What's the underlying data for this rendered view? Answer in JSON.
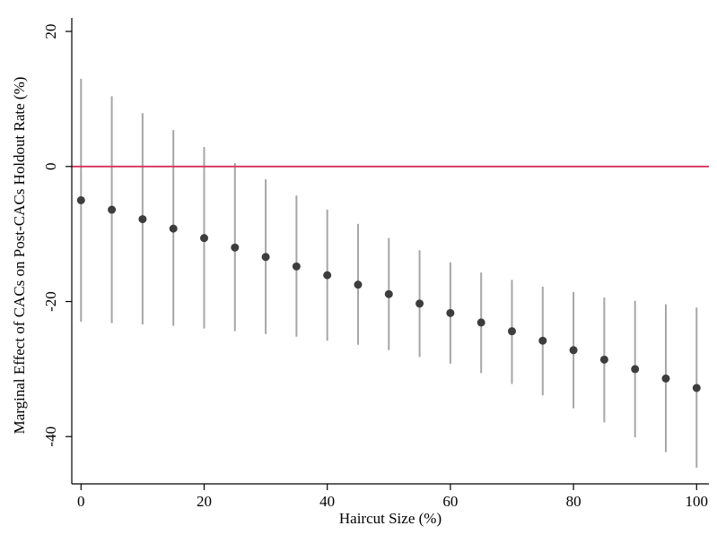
{
  "chart_data": {
    "type": "scatter",
    "title": "",
    "xlabel": "Haircut Size (%)",
    "ylabel": "Marginal Effect of CACs on Post-CACs Holdout Rate (%)",
    "xlim": [
      -1.5,
      102
    ],
    "ylim": [
      -47,
      22
    ],
    "xticks": [
      0,
      20,
      40,
      60,
      80,
      100
    ],
    "yticks": [
      20,
      0,
      -20,
      -40
    ],
    "xtick_labels": [
      "0",
      "20",
      "40",
      "60",
      "80",
      "100"
    ],
    "ytick_labels": [
      "20",
      "0",
      "-20",
      "-40"
    ],
    "reference_line": {
      "y": 0,
      "color": "#d6315b"
    },
    "colors": {
      "point": "#3d3d3d",
      "ci_bar": "#a6a6a6",
      "axis": "#000000"
    },
    "grid": false,
    "legend": "none",
    "series": [
      {
        "x": [
          0,
          5,
          10,
          15,
          20,
          25,
          30,
          35,
          40,
          45,
          50,
          55,
          60,
          65,
          70,
          75,
          80,
          85,
          90,
          95,
          100
        ],
        "y": [
          -5.0,
          -6.4,
          -7.8,
          -9.2,
          -10.6,
          -12.0,
          -13.4,
          -14.8,
          -16.1,
          -17.5,
          -18.9,
          -20.3,
          -21.7,
          -23.1,
          -24.4,
          -25.8,
          -27.2,
          -28.6,
          -30.0,
          -31.4,
          -32.8
        ],
        "lower": [
          -23.0,
          -23.2,
          -23.4,
          -23.6,
          -24.0,
          -24.4,
          -24.8,
          -25.2,
          -25.8,
          -26.4,
          -27.2,
          -28.2,
          -29.2,
          -30.6,
          -32.2,
          -33.9,
          -35.8,
          -37.9,
          -40.1,
          -42.3,
          -44.6
        ],
        "upper": [
          13.0,
          10.4,
          7.9,
          5.4,
          2.9,
          0.5,
          -1.9,
          -4.3,
          -6.4,
          -8.5,
          -10.6,
          -12.4,
          -14.2,
          -15.7,
          -16.8,
          -17.8,
          -18.6,
          -19.4,
          -19.9,
          -20.4,
          -20.9
        ]
      }
    ]
  }
}
